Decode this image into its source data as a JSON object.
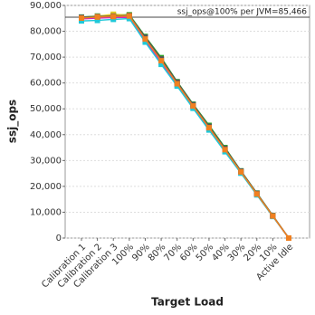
{
  "chart_data": {
    "type": "line",
    "x_label": "Target Load",
    "y_label": "ssj_ops",
    "categories": [
      "Calibration 1",
      "Calibration 2",
      "Calibration 3",
      "100%",
      "90%",
      "80%",
      "70%",
      "60%",
      "50%",
      "40%",
      "30%",
      "20%",
      "10%",
      "Active Idle"
    ],
    "ylim": [
      0,
      90000
    ],
    "yticks": [
      0,
      {
        "value": 10000,
        "label": "10,000"
      },
      {
        "value": 20000,
        "label": "20,000"
      },
      {
        "value": 30000,
        "label": "30,000"
      },
      {
        "value": 40000,
        "label": "40,000"
      },
      {
        "value": 50000,
        "label": "50,000"
      },
      {
        "value": 60000,
        "label": "60,000"
      },
      {
        "value": 70000,
        "label": "70,000"
      },
      {
        "value": 80000,
        "label": "80,000"
      },
      {
        "value": 90000,
        "label": "90,000"
      }
    ],
    "grid": true,
    "reference_line": {
      "value": 85466,
      "label": "ssj_ops@100% per JVM=85,466"
    },
    "series": [
      {
        "color": "#e8262a",
        "values": [
          85200,
          85600,
          85800,
          86000,
          77500,
          69000,
          60200,
          51500,
          43000,
          34500,
          25800,
          17200,
          8600,
          0
        ]
      },
      {
        "color": "#2f4fc9",
        "values": [
          85000,
          85300,
          85400,
          85600,
          76800,
          68400,
          59600,
          51000,
          42500,
          34000,
          25500,
          17000,
          8500,
          0
        ]
      },
      {
        "color": "#2aa52a",
        "values": [
          85500,
          85900,
          86200,
          86400,
          78000,
          69800,
          60500,
          51800,
          43600,
          35000,
          26000,
          17400,
          8700,
          0
        ]
      },
      {
        "color": "#e6d020",
        "values": [
          85300,
          85800,
          86600,
          86200,
          77200,
          68800,
          59900,
          51200,
          42800,
          34300,
          25600,
          17100,
          8550,
          0
        ]
      },
      {
        "color": "#d020c8",
        "values": [
          84800,
          85100,
          85300,
          85400,
          76400,
          68000,
          59300,
          50700,
          42200,
          33700,
          25300,
          16900,
          8450,
          0
        ]
      },
      {
        "color": "#20c8d8",
        "values": [
          84000,
          84200,
          84600,
          84900,
          75800,
          67200,
          58800,
          50200,
          41800,
          33400,
          25100,
          16700,
          8350,
          0
        ]
      },
      {
        "color": "#555555",
        "values": [
          85400,
          85700,
          85900,
          86100,
          77700,
          69300,
          60300,
          51600,
          43200,
          34700,
          25900,
          17300,
          8650,
          0
        ]
      },
      {
        "color": "#f08020",
        "values": [
          85100,
          85500,
          85700,
          85900,
          77000,
          68600,
          59700,
          51100,
          42700,
          34200,
          25600,
          17050,
          8520,
          0
        ]
      }
    ]
  }
}
